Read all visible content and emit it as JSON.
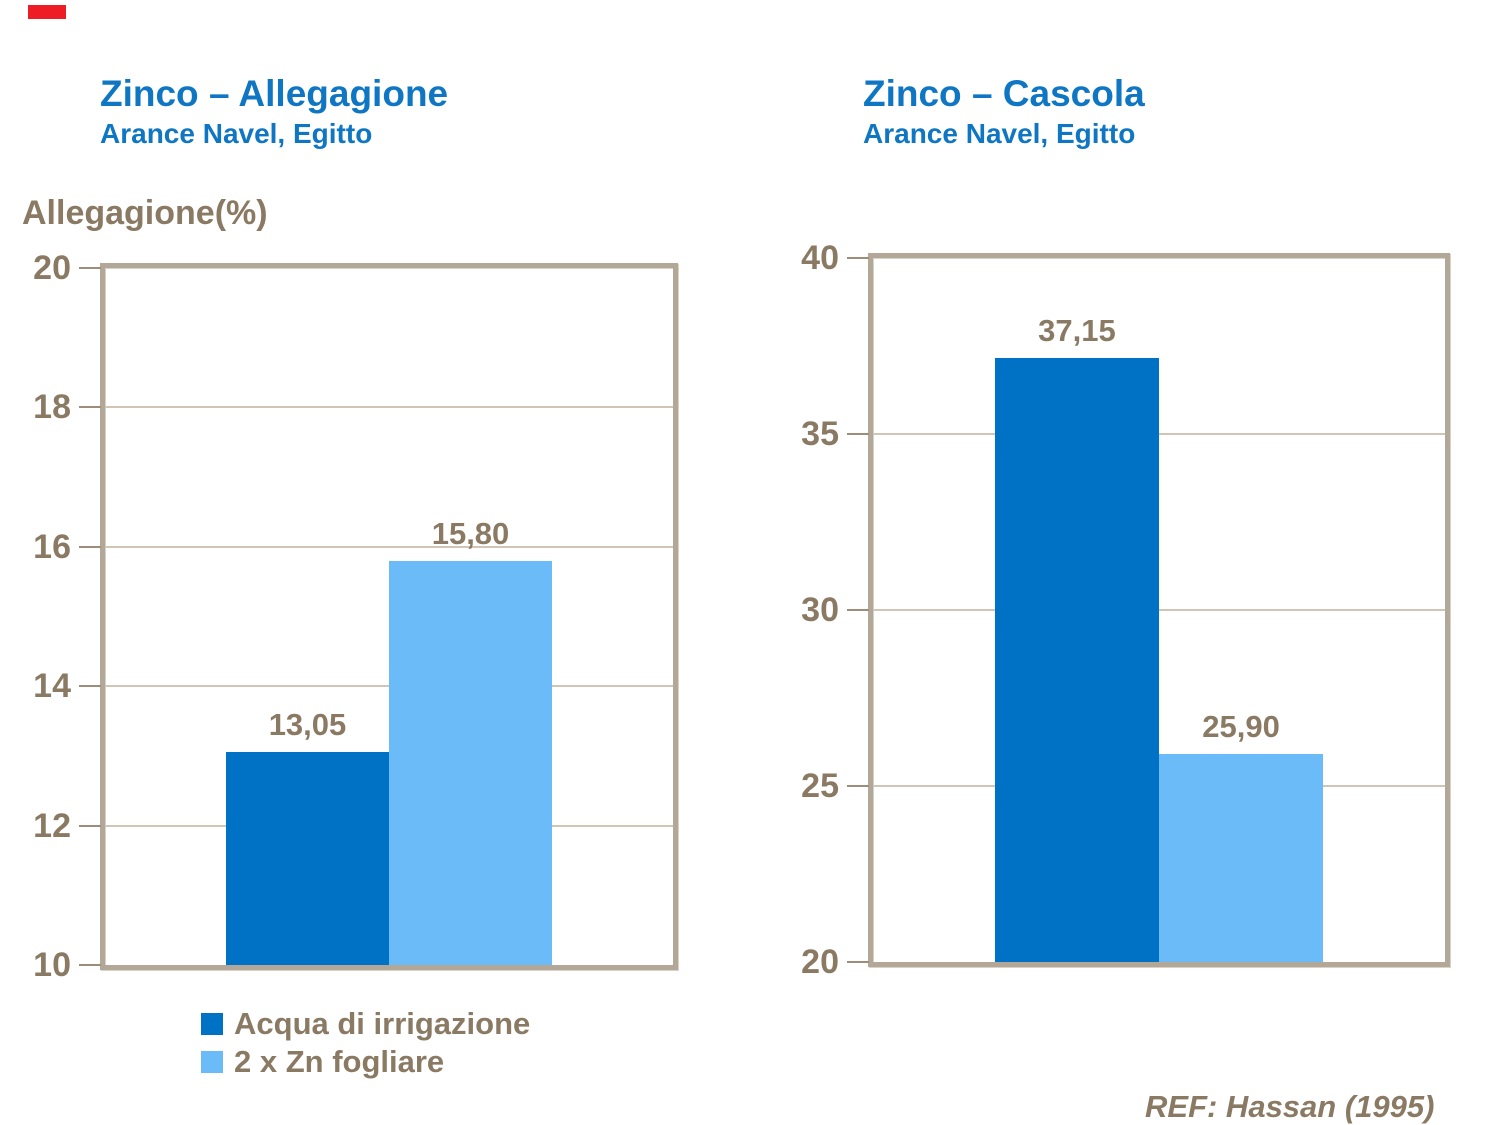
{
  "colors": {
    "title_blue": "#0E76C2",
    "text_brown": "#8A7963",
    "plot_border": "#B3A798",
    "gridline": "#D0C5B6",
    "tick_mark": "#9C8E7B",
    "series_dark": "#0072C6",
    "series_light": "#6BBBF9",
    "accent_red": "#EE1C25"
  },
  "chart_data": [
    {
      "type": "bar",
      "title": "Zinco – Allegagione",
      "subtitle": "Arance Navel, Egitto",
      "ylabel": "Allegagione(%)",
      "xlabel": "",
      "categories": [
        "Acqua di irrigazione",
        "2 x Zn fogliare"
      ],
      "values": [
        13.05,
        15.8
      ],
      "value_labels": [
        "13,05",
        "15,80"
      ],
      "ylim": [
        10,
        20
      ],
      "yticks": [
        20,
        18,
        16,
        14,
        12,
        10
      ],
      "grid": true,
      "legend_position": "bottom-left",
      "bar_colors": [
        "#0072C6",
        "#6BBBF9"
      ]
    },
    {
      "type": "bar",
      "title": "Zinco – Cascola",
      "subtitle": "Arance Navel, Egitto",
      "ylabel": "",
      "xlabel": "",
      "categories": [
        "Acqua di irrigazione",
        "2 x Zn fogliare"
      ],
      "values": [
        37.15,
        25.9
      ],
      "value_labels": [
        "37,15",
        "25,90"
      ],
      "ylim": [
        20,
        40
      ],
      "yticks": [
        40,
        35,
        30,
        25,
        20
      ],
      "grid": true,
      "legend_position": "none",
      "bar_colors": [
        "#0072C6",
        "#6BBBF9"
      ]
    }
  ],
  "legend": {
    "items": [
      {
        "label": "Acqua di irrigazione",
        "color": "#0072C6"
      },
      {
        "label": "2 x Zn fogliare",
        "color": "#6BBBF9"
      }
    ]
  },
  "footer": {
    "ref_label": "REF: Hassan (1995)"
  }
}
